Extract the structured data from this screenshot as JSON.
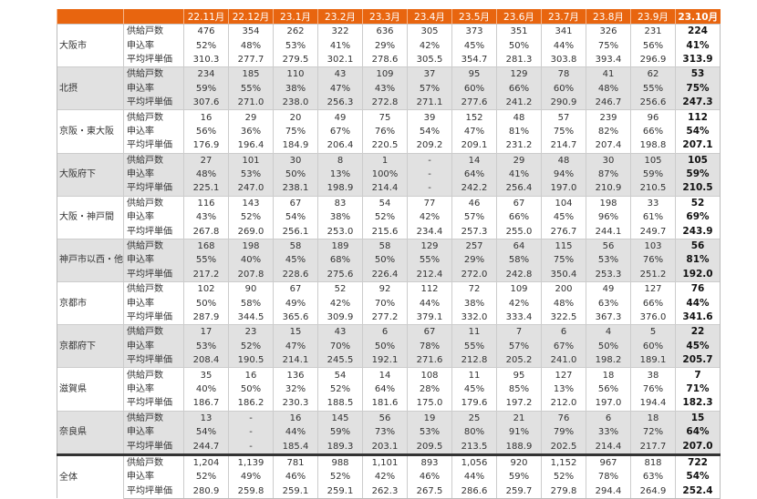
{
  "header": {
    "months": [
      "22.11月",
      "22.12月",
      "23.1月",
      "23.2月",
      "23.3月",
      "23.4月",
      "23.5月",
      "23.6月",
      "23.7月",
      "23.8月",
      "23.9月",
      "23.10月"
    ]
  },
  "row_labels": [
    "供給戸数",
    "申込率",
    "平均坪単価"
  ],
  "colors": {
    "header_bg": "#e8650f",
    "header_text": "#ffffff",
    "alt_row": "#e1e1e1"
  },
  "regions": [
    {
      "name": "大阪市",
      "rows": [
        [
          "476",
          "354",
          "262",
          "322",
          "636",
          "305",
          "373",
          "351",
          "341",
          "326",
          "231",
          "224"
        ],
        [
          "52%",
          "48%",
          "53%",
          "41%",
          "29%",
          "42%",
          "45%",
          "50%",
          "44%",
          "75%",
          "56%",
          "41%"
        ],
        [
          "310.3",
          "277.7",
          "279.5",
          "302.1",
          "278.6",
          "305.5",
          "354.7",
          "281.3",
          "303.8",
          "393.4",
          "296.9",
          "313.9"
        ]
      ]
    },
    {
      "name": "北摂",
      "rows": [
        [
          "234",
          "185",
          "110",
          "43",
          "109",
          "37",
          "95",
          "129",
          "78",
          "41",
          "62",
          "53"
        ],
        [
          "59%",
          "55%",
          "38%",
          "47%",
          "43%",
          "57%",
          "60%",
          "66%",
          "60%",
          "48%",
          "55%",
          "75%"
        ],
        [
          "307.6",
          "271.0",
          "238.0",
          "256.3",
          "272.8",
          "271.1",
          "277.6",
          "241.2",
          "290.9",
          "246.7",
          "256.6",
          "247.3"
        ]
      ]
    },
    {
      "name": "京阪・東大阪",
      "rows": [
        [
          "16",
          "29",
          "20",
          "49",
          "75",
          "39",
          "152",
          "48",
          "57",
          "239",
          "96",
          "112"
        ],
        [
          "56%",
          "36%",
          "75%",
          "67%",
          "76%",
          "54%",
          "47%",
          "81%",
          "75%",
          "82%",
          "66%",
          "54%"
        ],
        [
          "176.9",
          "196.4",
          "184.9",
          "206.4",
          "220.5",
          "209.2",
          "209.1",
          "231.2",
          "214.7",
          "207.4",
          "198.8",
          "207.1"
        ]
      ]
    },
    {
      "name": "大阪府下",
      "rows": [
        [
          "27",
          "101",
          "30",
          "8",
          "1",
          "-",
          "14",
          "29",
          "48",
          "30",
          "105",
          "105"
        ],
        [
          "48%",
          "53%",
          "50%",
          "13%",
          "100%",
          "-",
          "64%",
          "41%",
          "94%",
          "87%",
          "59%",
          "59%"
        ],
        [
          "225.1",
          "247.0",
          "238.1",
          "198.9",
          "214.4",
          "-",
          "242.2",
          "256.4",
          "197.0",
          "210.9",
          "210.5",
          "210.5"
        ]
      ]
    },
    {
      "name": "大阪・神戸間",
      "rows": [
        [
          "116",
          "143",
          "67",
          "83",
          "54",
          "77",
          "46",
          "67",
          "104",
          "198",
          "33",
          "52"
        ],
        [
          "43%",
          "52%",
          "54%",
          "38%",
          "52%",
          "42%",
          "57%",
          "66%",
          "45%",
          "96%",
          "61%",
          "69%"
        ],
        [
          "267.8",
          "269.0",
          "256.1",
          "253.0",
          "215.6",
          "234.4",
          "257.3",
          "255.0",
          "276.7",
          "244.1",
          "249.7",
          "243.9"
        ]
      ]
    },
    {
      "name": "神戸市以西・他",
      "rows": [
        [
          "168",
          "198",
          "58",
          "189",
          "58",
          "129",
          "257",
          "64",
          "115",
          "56",
          "103",
          "56"
        ],
        [
          "55%",
          "40%",
          "45%",
          "68%",
          "50%",
          "55%",
          "29%",
          "58%",
          "75%",
          "53%",
          "76%",
          "81%"
        ],
        [
          "217.2",
          "207.8",
          "228.6",
          "275.6",
          "226.4",
          "212.4",
          "272.0",
          "242.8",
          "350.4",
          "253.3",
          "251.2",
          "192.0"
        ]
      ]
    },
    {
      "name": "京都市",
      "rows": [
        [
          "102",
          "90",
          "67",
          "52",
          "92",
          "112",
          "72",
          "109",
          "200",
          "49",
          "127",
          "76"
        ],
        [
          "50%",
          "58%",
          "49%",
          "42%",
          "70%",
          "44%",
          "38%",
          "42%",
          "48%",
          "63%",
          "66%",
          "44%"
        ],
        [
          "287.9",
          "344.5",
          "365.6",
          "309.9",
          "277.2",
          "379.1",
          "332.0",
          "333.4",
          "322.5",
          "367.3",
          "376.0",
          "341.6"
        ]
      ]
    },
    {
      "name": "京都府下",
      "rows": [
        [
          "17",
          "23",
          "15",
          "43",
          "6",
          "67",
          "11",
          "7",
          "6",
          "4",
          "5",
          "22"
        ],
        [
          "53%",
          "52%",
          "47%",
          "70%",
          "50%",
          "78%",
          "55%",
          "57%",
          "67%",
          "50%",
          "60%",
          "45%"
        ],
        [
          "208.4",
          "190.5",
          "214.1",
          "245.5",
          "192.1",
          "271.6",
          "212.8",
          "205.2",
          "241.0",
          "198.2",
          "189.1",
          "205.7"
        ]
      ]
    },
    {
      "name": "滋賀県",
      "rows": [
        [
          "35",
          "16",
          "136",
          "54",
          "14",
          "108",
          "11",
          "95",
          "127",
          "18",
          "38",
          "7"
        ],
        [
          "40%",
          "50%",
          "32%",
          "52%",
          "64%",
          "28%",
          "45%",
          "85%",
          "13%",
          "56%",
          "76%",
          "71%"
        ],
        [
          "186.7",
          "186.2",
          "230.3",
          "188.5",
          "181.6",
          "175.0",
          "179.6",
          "197.2",
          "212.0",
          "197.0",
          "194.4",
          "182.3"
        ]
      ]
    },
    {
      "name": "奈良県",
      "rows": [
        [
          "13",
          "-",
          "16",
          "145",
          "56",
          "19",
          "25",
          "21",
          "76",
          "6",
          "18",
          "15"
        ],
        [
          "54%",
          "-",
          "44%",
          "59%",
          "73%",
          "53%",
          "80%",
          "91%",
          "79%",
          "33%",
          "72%",
          "64%"
        ],
        [
          "244.7",
          "-",
          "185.4",
          "189.3",
          "203.1",
          "209.5",
          "213.5",
          "188.9",
          "202.5",
          "214.4",
          "217.7",
          "207.0"
        ]
      ]
    },
    {
      "name": "全体",
      "total": true,
      "rows": [
        [
          "1,204",
          "1,139",
          "781",
          "988",
          "1,101",
          "893",
          "1,056",
          "920",
          "1,152",
          "967",
          "818",
          "722"
        ],
        [
          "52%",
          "49%",
          "46%",
          "52%",
          "42%",
          "46%",
          "44%",
          "59%",
          "52%",
          "78%",
          "63%",
          "54%"
        ],
        [
          "280.9",
          "259.8",
          "259.1",
          "259.1",
          "262.3",
          "267.5",
          "286.6",
          "259.7",
          "279.8",
          "294.4",
          "264.9",
          "252.4"
        ]
      ]
    }
  ]
}
